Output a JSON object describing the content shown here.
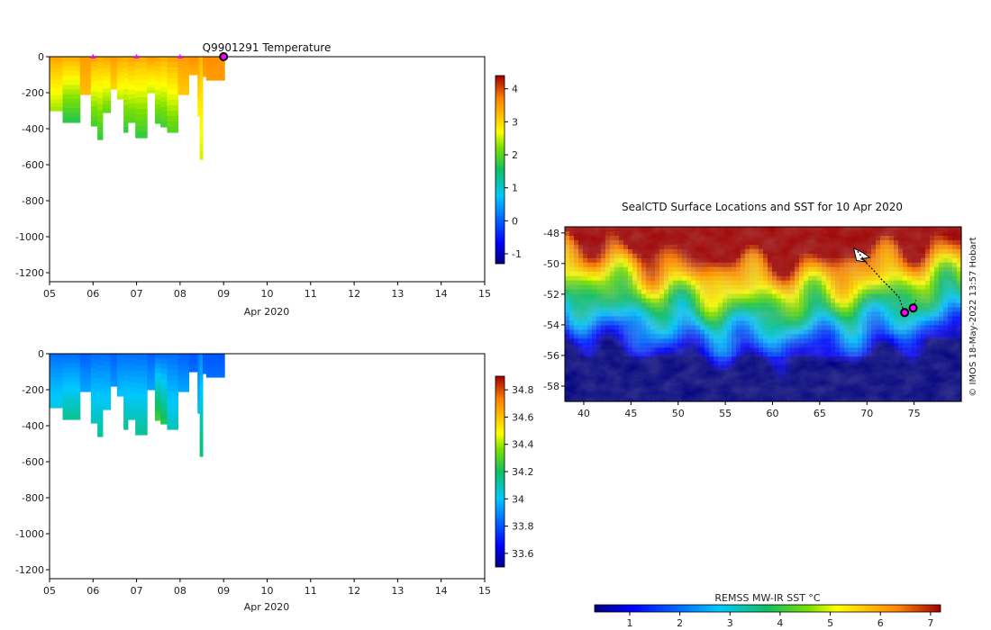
{
  "chart_data": [
    {
      "type": "heatmap",
      "title": "Q9901291  Temperature",
      "xlabel": "Apr 2020",
      "xticks": [
        "05",
        "06",
        "07",
        "08",
        "09",
        "10",
        "11",
        "12",
        "13",
        "14",
        "15"
      ],
      "xlim": [
        5,
        15
      ],
      "yticks": [
        "0",
        "-200",
        "-400",
        "-600",
        "-800",
        "-1000",
        "-1200"
      ],
      "ylim": [
        -1250,
        0
      ],
      "colorbar": {
        "ticks": [
          "4",
          "3",
          "2",
          "1",
          "0",
          "-1"
        ],
        "range": [
          -1.3,
          4.4
        ]
      },
      "markers_days": [
        6.0,
        7.0,
        8.0
      ],
      "current_day": 9.0,
      "profiles": [
        {
          "x": 5.0,
          "w": 0.3,
          "depth": 300,
          "top": 3.4,
          "bottom": 2.3
        },
        {
          "x": 5.3,
          "w": 0.4,
          "depth": 365,
          "top": 3.3,
          "bottom": 1.6
        },
        {
          "x": 5.7,
          "w": 0.3,
          "depth": 210,
          "top": 3.5,
          "bottom": 3.2
        },
        {
          "x": 5.95,
          "w": 0.15,
          "depth": 385,
          "top": 3.4,
          "bottom": 1.8
        },
        {
          "x": 6.1,
          "w": 0.12,
          "depth": 460,
          "top": 3.3,
          "bottom": 1.7
        },
        {
          "x": 6.22,
          "w": 0.18,
          "depth": 310,
          "top": 3.4,
          "bottom": 2.0
        },
        {
          "x": 6.4,
          "w": 0.15,
          "depth": 180,
          "top": 3.5,
          "bottom": 3.0
        },
        {
          "x": 6.55,
          "w": 0.15,
          "depth": 235,
          "top": 3.4,
          "bottom": 2.4
        },
        {
          "x": 6.7,
          "w": 0.1,
          "depth": 420,
          "top": 3.3,
          "bottom": 1.7
        },
        {
          "x": 6.8,
          "w": 0.17,
          "depth": 365,
          "top": 3.4,
          "bottom": 1.9
        },
        {
          "x": 6.97,
          "w": 0.27,
          "depth": 450,
          "top": 3.3,
          "bottom": 1.7
        },
        {
          "x": 7.24,
          "w": 0.18,
          "depth": 200,
          "top": 3.5,
          "bottom": 2.4
        },
        {
          "x": 7.42,
          "w": 0.13,
          "depth": 370,
          "top": 3.4,
          "bottom": 1.8
        },
        {
          "x": 7.55,
          "w": 0.15,
          "depth": 390,
          "top": 3.3,
          "bottom": 1.8
        },
        {
          "x": 7.7,
          "w": 0.25,
          "depth": 420,
          "top": 3.4,
          "bottom": 1.9
        },
        {
          "x": 7.95,
          "w": 0.25,
          "depth": 210,
          "top": 3.5,
          "bottom": 3.1
        },
        {
          "x": 8.2,
          "w": 0.2,
          "depth": 100,
          "top": 3.6,
          "bottom": 3.3
        },
        {
          "x": 8.4,
          "w": 0.08,
          "depth": 330,
          "top": 3.5,
          "bottom": 2.7
        },
        {
          "x": 8.45,
          "w": 0.07,
          "depth": 570,
          "top": 3.2,
          "bottom": 2.5
        },
        {
          "x": 8.52,
          "w": 0.08,
          "depth": 110,
          "top": 3.6,
          "bottom": 3.4
        },
        {
          "x": 8.6,
          "w": 0.42,
          "depth": 130,
          "top": 3.6,
          "bottom": 3.5
        }
      ]
    },
    {
      "type": "heatmap",
      "title": "",
      "xlabel": "Apr 2020",
      "xticks": [
        "05",
        "06",
        "07",
        "08",
        "09",
        "10",
        "11",
        "12",
        "13",
        "14",
        "15"
      ],
      "xlim": [
        5,
        15
      ],
      "yticks": [
        "0",
        "-200",
        "-400",
        "-600",
        "-800",
        "-1000",
        "-1200"
      ],
      "ylim": [
        -1250,
        0
      ],
      "colorbar": {
        "ticks": [
          "34.8",
          "34.6",
          "34.4",
          "34.2",
          "34",
          "33.8",
          "33.6"
        ],
        "range": [
          33.5,
          34.9
        ]
      },
      "profiles": [
        {
          "x": 5.0,
          "w": 0.3,
          "depth": 300,
          "top": 33.85,
          "bottom": 34.05
        },
        {
          "x": 5.3,
          "w": 0.4,
          "depth": 365,
          "top": 33.85,
          "bottom": 34.15
        },
        {
          "x": 5.7,
          "w": 0.3,
          "depth": 210,
          "top": 33.82,
          "bottom": 33.95
        },
        {
          "x": 5.95,
          "w": 0.15,
          "depth": 385,
          "top": 33.85,
          "bottom": 34.1
        },
        {
          "x": 6.1,
          "w": 0.12,
          "depth": 460,
          "top": 33.85,
          "bottom": 34.15
        },
        {
          "x": 6.22,
          "w": 0.18,
          "depth": 310,
          "top": 33.85,
          "bottom": 34.05
        },
        {
          "x": 6.4,
          "w": 0.15,
          "depth": 180,
          "top": 33.82,
          "bottom": 33.92
        },
        {
          "x": 6.55,
          "w": 0.15,
          "depth": 235,
          "top": 33.85,
          "bottom": 34.0
        },
        {
          "x": 6.7,
          "w": 0.1,
          "depth": 420,
          "top": 33.85,
          "bottom": 34.15
        },
        {
          "x": 6.8,
          "w": 0.17,
          "depth": 365,
          "top": 33.85,
          "bottom": 34.1
        },
        {
          "x": 6.97,
          "w": 0.27,
          "depth": 450,
          "top": 33.85,
          "bottom": 34.15
        },
        {
          "x": 7.24,
          "w": 0.18,
          "depth": 200,
          "top": 33.82,
          "bottom": 33.95
        },
        {
          "x": 7.42,
          "w": 0.13,
          "depth": 370,
          "top": 33.85,
          "bottom": 34.3
        },
        {
          "x": 7.55,
          "w": 0.15,
          "depth": 390,
          "top": 33.85,
          "bottom": 34.25
        },
        {
          "x": 7.7,
          "w": 0.25,
          "depth": 420,
          "top": 33.85,
          "bottom": 34.1
        },
        {
          "x": 7.95,
          "w": 0.25,
          "depth": 210,
          "top": 33.82,
          "bottom": 33.95
        },
        {
          "x": 8.2,
          "w": 0.2,
          "depth": 100,
          "top": 33.8,
          "bottom": 33.85
        },
        {
          "x": 8.4,
          "w": 0.08,
          "depth": 330,
          "top": 33.85,
          "bottom": 34.0
        },
        {
          "x": 8.45,
          "w": 0.07,
          "depth": 570,
          "top": 33.9,
          "bottom": 34.2
        },
        {
          "x": 8.52,
          "w": 0.08,
          "depth": 110,
          "top": 33.8,
          "bottom": 33.85
        },
        {
          "x": 8.6,
          "w": 0.42,
          "depth": 130,
          "top": 33.8,
          "bottom": 33.85
        }
      ]
    },
    {
      "type": "heatmap",
      "title": "SealCTD Surface Locations and SST for 10 Apr 2020",
      "xlabel": "",
      "xticks": [
        "40",
        "45",
        "50",
        "55",
        "60",
        "65",
        "70",
        "75"
      ],
      "xlim": [
        38,
        80
      ],
      "yticks": [
        "-48",
        "-50",
        "-52",
        "-54",
        "-56",
        "-58"
      ],
      "ylim": [
        -59,
        -47.6
      ],
      "colorbar": {
        "label": "REMSS MW-IR SST °C",
        "ticks": [
          "1",
          "2",
          "3",
          "4",
          "5",
          "6",
          "7"
        ],
        "range": [
          0.3,
          7.2
        ]
      },
      "track": [
        [
          69.0,
          -49.2
        ],
        [
          69.5,
          -49.6
        ],
        [
          70.0,
          -50.0
        ],
        [
          70.8,
          -50.5
        ],
        [
          71.5,
          -51.0
        ],
        [
          72.5,
          -51.6
        ],
        [
          73.4,
          -52.2
        ],
        [
          73.8,
          -52.9
        ],
        [
          74.0,
          -53.3
        ],
        [
          74.6,
          -53.0
        ],
        [
          75.0,
          -52.7
        ],
        [
          75.2,
          -52.4
        ]
      ],
      "surface_points": [
        [
          74.0,
          -53.2
        ],
        [
          74.9,
          -52.9
        ]
      ],
      "credit": "© IMOS 18-May-2022 13:57 Hobart"
    }
  ]
}
